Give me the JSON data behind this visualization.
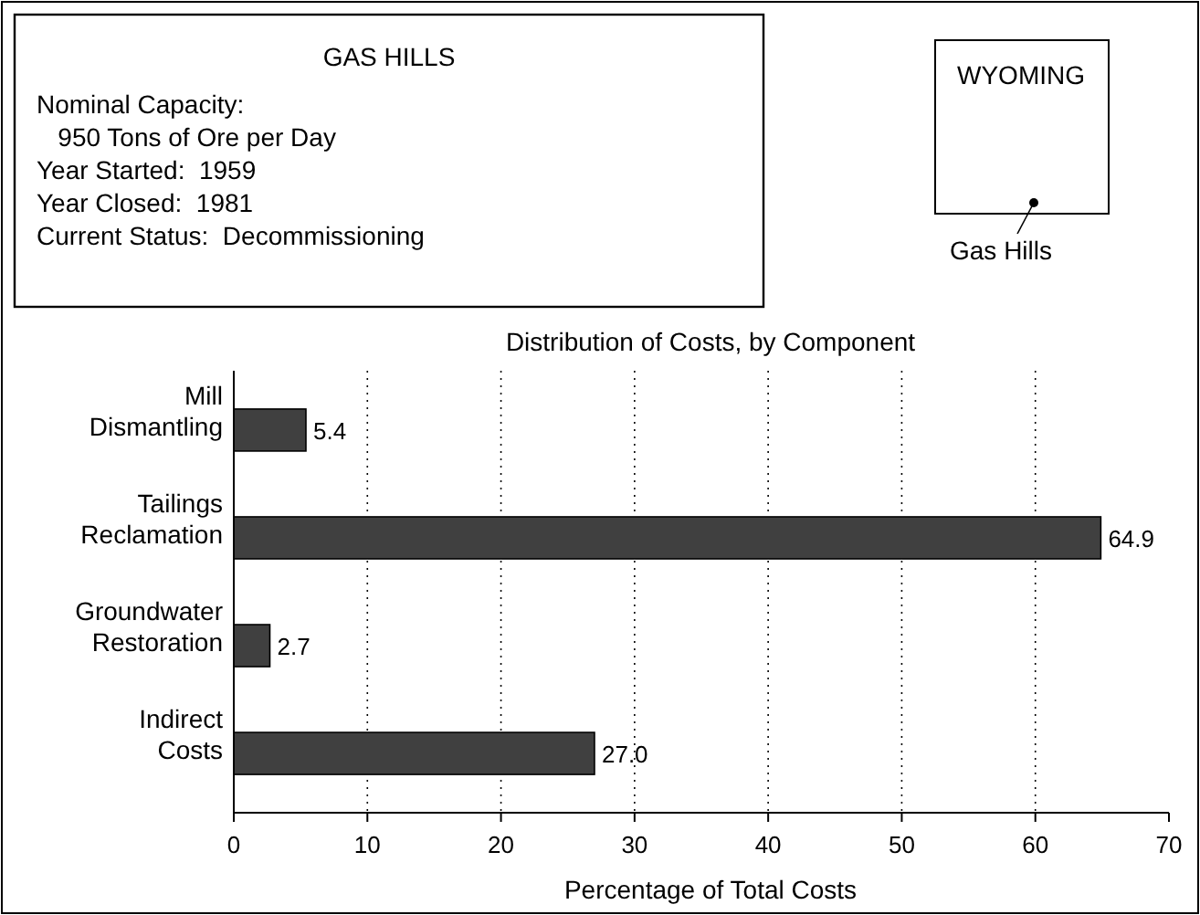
{
  "chart_data": {
    "type": "bar",
    "orientation": "horizontal",
    "title": "Distribution of Costs, by Component",
    "xlabel": "Percentage of Total Costs",
    "categories": [
      "Mill\nDismantling",
      "Tailings\nReclamation",
      "Groundwater\nRestoration",
      "Indirect\nCosts"
    ],
    "values": [
      5.4,
      64.9,
      2.7,
      27.0
    ],
    "value_labels": [
      "5.4",
      "64.9",
      "2.7",
      "27.0"
    ],
    "color": "#404040",
    "xlim": [
      0,
      70
    ],
    "xticks": [
      0,
      10,
      20,
      30,
      40,
      50,
      60,
      70
    ],
    "grid": "x",
    "annotations": [
      "GAS HILLS",
      "Nominal Capacity:",
      "   950 Tons of Ore per Day",
      "Year Started:  1959",
      "Year Closed:  1981",
      "Current Status:  Decommissioning",
      "WYOMING",
      "Gas Hills"
    ]
  }
}
